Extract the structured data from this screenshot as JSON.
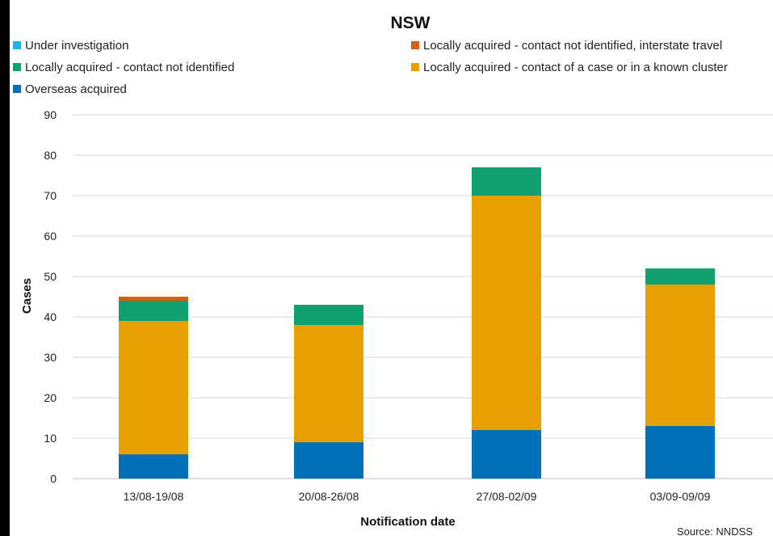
{
  "chart_data": {
    "type": "bar",
    "stacked": true,
    "title": "NSW",
    "xlabel": "Notification date",
    "ylabel": "Cases",
    "ylim": [
      0,
      90
    ],
    "yticks": [
      0,
      10,
      20,
      30,
      40,
      50,
      60,
      70,
      80,
      90
    ],
    "grid": true,
    "legend_position": "top",
    "categories": [
      "13/08-19/08",
      "20/08-26/08",
      "27/08-02/09",
      "03/09-09/09"
    ],
    "series": [
      {
        "name": "Overseas acquired",
        "color": "#0070B8",
        "values": [
          6,
          9,
          12,
          13
        ]
      },
      {
        "name": "Locally acquired - contact of a case or in a known cluster",
        "color": "#E7A000",
        "values": [
          33,
          29,
          58,
          35
        ]
      },
      {
        "name": "Locally acquired - contact not identified",
        "color": "#12A072",
        "values": [
          5,
          5,
          7,
          4
        ]
      },
      {
        "name": "Locally acquired - contact not identified, interstate travel",
        "color": "#D5620A",
        "values": [
          1,
          0,
          0,
          0
        ]
      },
      {
        "name": "Under investigation",
        "color": "#1CB4EA",
        "values": [
          0,
          0,
          0,
          0
        ]
      }
    ],
    "source": "Source: NNDSS"
  }
}
